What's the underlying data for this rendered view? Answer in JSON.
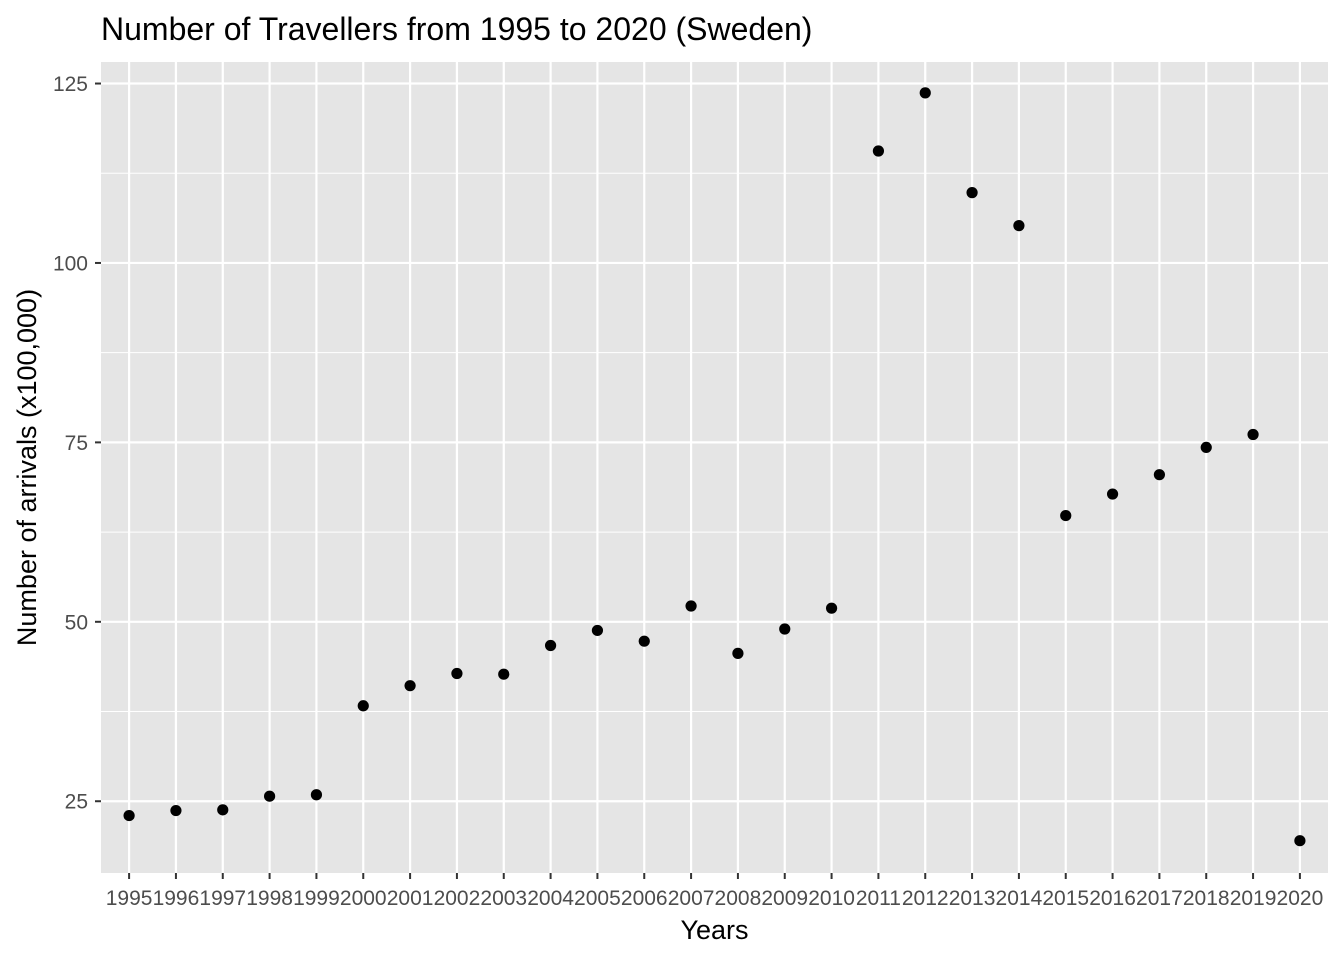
{
  "chart_data": {
    "type": "scatter",
    "title": "Number of Travellers from 1995 to 2020 (Sweden)",
    "xlabel": "Years",
    "ylabel": "Number of arrivals (x100,000)",
    "x": [
      "1995",
      "1996",
      "1997",
      "1998",
      "1999",
      "2000",
      "2001",
      "2002",
      "2003",
      "2004",
      "2005",
      "2006",
      "2007",
      "2008",
      "2009",
      "2010",
      "2011",
      "2012",
      "2013",
      "2014",
      "2015",
      "2016",
      "2017",
      "2018",
      "2019",
      "2020"
    ],
    "y": [
      23.0,
      23.7,
      23.8,
      25.7,
      25.9,
      38.3,
      41.1,
      42.8,
      42.7,
      46.7,
      48.8,
      47.3,
      52.2,
      45.6,
      49.0,
      51.9,
      115.6,
      123.7,
      109.8,
      105.2,
      64.8,
      67.8,
      70.5,
      74.3,
      76.1,
      19.5
    ],
    "ylim": [
      15,
      128
    ],
    "yticks": [
      25,
      50,
      75,
      100,
      125
    ],
    "grid": true,
    "legend": "none",
    "colors": {
      "panel": "#e5e5e5",
      "grid_major": "#ffffff",
      "point": "#000000",
      "tick": "#333333"
    }
  }
}
